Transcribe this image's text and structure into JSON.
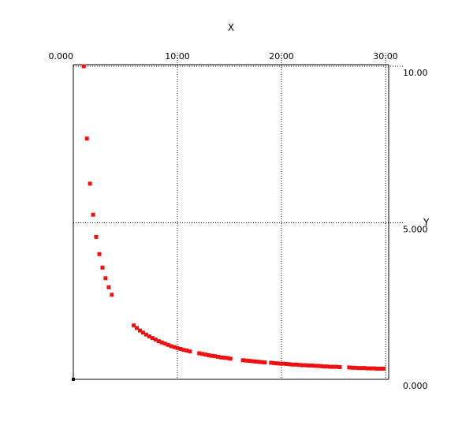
{
  "chart_data": {
    "type": "scatter",
    "xlabel": "X",
    "ylabel": "Y",
    "xlim": [
      0,
      30.3
    ],
    "ylim": [
      0,
      10.05
    ],
    "grid": true,
    "x_ticks": [
      {
        "value": 0,
        "label": "0.000"
      },
      {
        "value": 10,
        "label": "10.00"
      },
      {
        "value": 20,
        "label": "20.00"
      },
      {
        "value": 30,
        "label": "30.00"
      }
    ],
    "y_ticks": [
      {
        "value": 0,
        "label": "0.000"
      },
      {
        "value": 5,
        "label": "5.000"
      },
      {
        "value": 10,
        "label": "10.00"
      }
    ],
    "marker_color": "#ee1111",
    "series": [
      {
        "x": [
          1.0,
          1.3,
          1.6,
          1.9,
          2.2,
          2.5,
          2.8,
          3.1,
          3.4,
          3.7,
          5.8,
          6.1,
          6.4,
          6.7,
          7.0,
          7.3,
          7.6,
          7.9,
          8.2,
          8.5,
          8.8,
          9.1,
          9.4,
          9.7,
          10.0,
          10.3,
          10.6,
          10.9,
          11.2,
          12.1,
          12.4,
          12.7,
          13.0,
          13.3,
          13.6,
          13.9,
          14.2,
          14.5,
          14.8,
          15.1,
          16.3,
          16.6,
          16.9,
          17.2,
          17.5,
          17.8,
          18.1,
          18.4,
          19.0,
          19.3,
          19.6,
          19.9,
          20.2,
          20.5,
          20.8,
          21.1,
          21.4,
          21.7,
          22.0,
          22.3,
          22.6,
          22.9,
          23.2,
          23.5,
          23.8,
          24.1,
          24.4,
          24.7,
          25.0,
          25.3,
          25.6,
          26.5,
          26.8,
          27.1,
          27.4,
          27.7,
          28.0,
          28.3,
          28.6,
          28.9,
          29.2,
          29.5,
          29.8
        ],
        "y": [
          10.0,
          7.69,
          6.25,
          5.26,
          4.55,
          4.0,
          3.57,
          3.23,
          2.94,
          2.7,
          1.72,
          1.64,
          1.56,
          1.49,
          1.43,
          1.37,
          1.32,
          1.27,
          1.22,
          1.18,
          1.14,
          1.1,
          1.06,
          1.03,
          1.0,
          0.97,
          0.94,
          0.92,
          0.89,
          0.83,
          0.81,
          0.79,
          0.77,
          0.75,
          0.74,
          0.72,
          0.7,
          0.69,
          0.68,
          0.66,
          0.61,
          0.6,
          0.59,
          0.58,
          0.57,
          0.56,
          0.55,
          0.54,
          0.53,
          0.52,
          0.51,
          0.5,
          0.5,
          0.49,
          0.48,
          0.47,
          0.47,
          0.46,
          0.45,
          0.45,
          0.44,
          0.44,
          0.43,
          0.43,
          0.42,
          0.41,
          0.41,
          0.4,
          0.4,
          0.4,
          0.39,
          0.38,
          0.37,
          0.37,
          0.36,
          0.36,
          0.36,
          0.35,
          0.35,
          0.35,
          0.34,
          0.34,
          0.34
        ]
      }
    ]
  }
}
